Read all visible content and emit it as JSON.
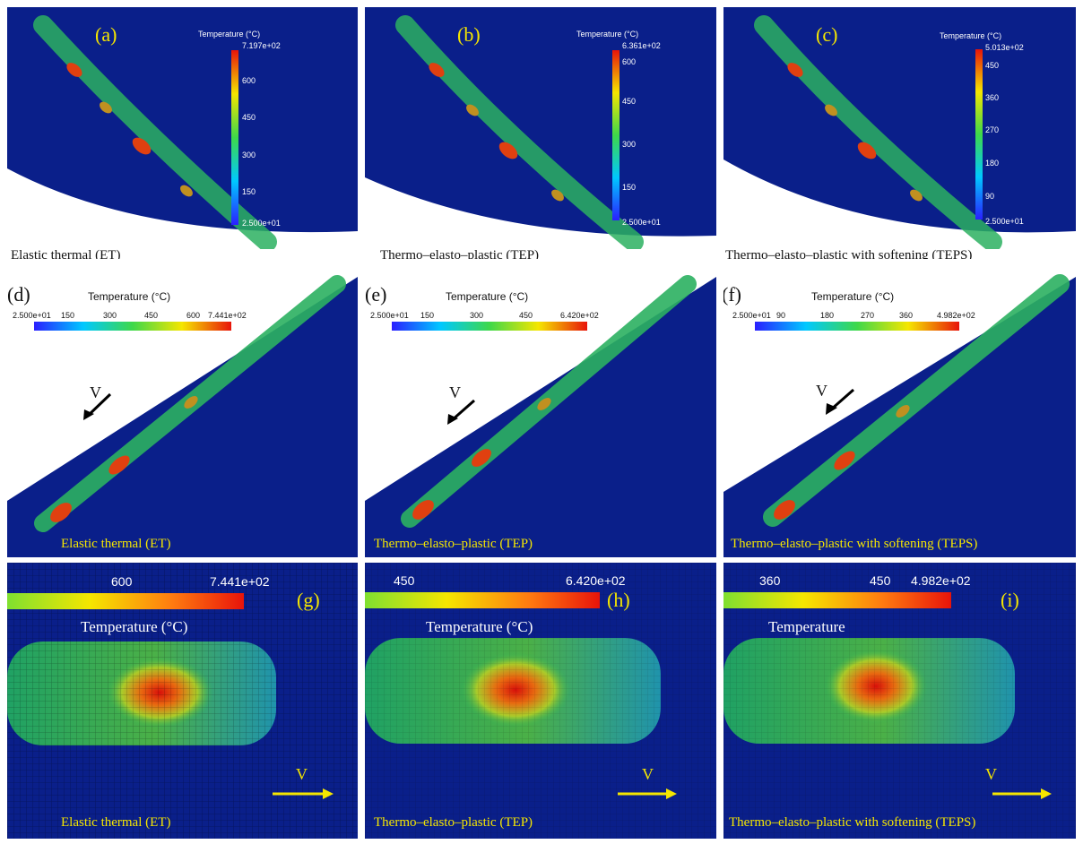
{
  "panels": {
    "a": {
      "label": "(a)",
      "caption": "Elastic thermal (ET)",
      "legend_title": "Temperature (°C)",
      "max": "7.197e+02",
      "min": "2.500e+01",
      "ticks": [
        "600",
        "450",
        "300",
        "150"
      ]
    },
    "b": {
      "label": "(b)",
      "caption": "Thermo–elasto–plastic (TEP)",
      "legend_title": "Temperature (°C)",
      "max": "6.361e+02",
      "min": "2.500e+01",
      "ticks": [
        "600",
        "450",
        "300",
        "150"
      ]
    },
    "c": {
      "label": "(c)",
      "caption": "Thermo–elasto–plastic with softening (TEPS)",
      "legend_title": "Temperature (°C)",
      "max": "5.013e+02",
      "min": "2.500e+01",
      "ticks": [
        "450",
        "360",
        "270",
        "180",
        "90"
      ]
    },
    "d": {
      "label": "(d)",
      "caption": "Elastic thermal (ET)",
      "legend_title": "Temperature (°C)",
      "min": "2.500e+01",
      "ticks": [
        "150",
        "300",
        "450",
        "600"
      ],
      "max": "7.441e+02",
      "arrow": "V"
    },
    "e": {
      "label": "(e)",
      "caption": "Thermo–elasto–plastic (TEP)",
      "legend_title": "Temperature (°C)",
      "min": "2.500e+01",
      "ticks": [
        "150",
        "300",
        "450"
      ],
      "max": "6.420e+02",
      "arrow": "V"
    },
    "f": {
      "label": "(f)",
      "caption": "Thermo–elasto–plastic with softening (TEPS)",
      "legend_title": "Temperature (°C)",
      "min": "2.500e+01",
      "ticks": [
        "90",
        "180",
        "270",
        "360"
      ],
      "max": "4.982e+02",
      "arrow": "V"
    },
    "g": {
      "label": "(g)",
      "caption": "Elastic thermal (ET)",
      "legend_title": "Temperature (°C)",
      "tick": "600",
      "max": "7.441e+02",
      "arrow": "V"
    },
    "h": {
      "label": "(h)",
      "caption": "Thermo–elasto–plastic (TEP)",
      "legend_title": "Temperature (°C)",
      "tick": "450",
      "max": "6.420e+02",
      "arrow": "V"
    },
    "i": {
      "label": "(i)",
      "caption": "Thermo–elasto–plastic with softening (TEPS)",
      "legend_title": "Temperature",
      "tick1": "360",
      "tick2": "450",
      "max": "4.982e+02",
      "arrow": "V"
    }
  },
  "colors": {
    "background": "#0a1f8a",
    "label_yellow": "#f5e600"
  }
}
